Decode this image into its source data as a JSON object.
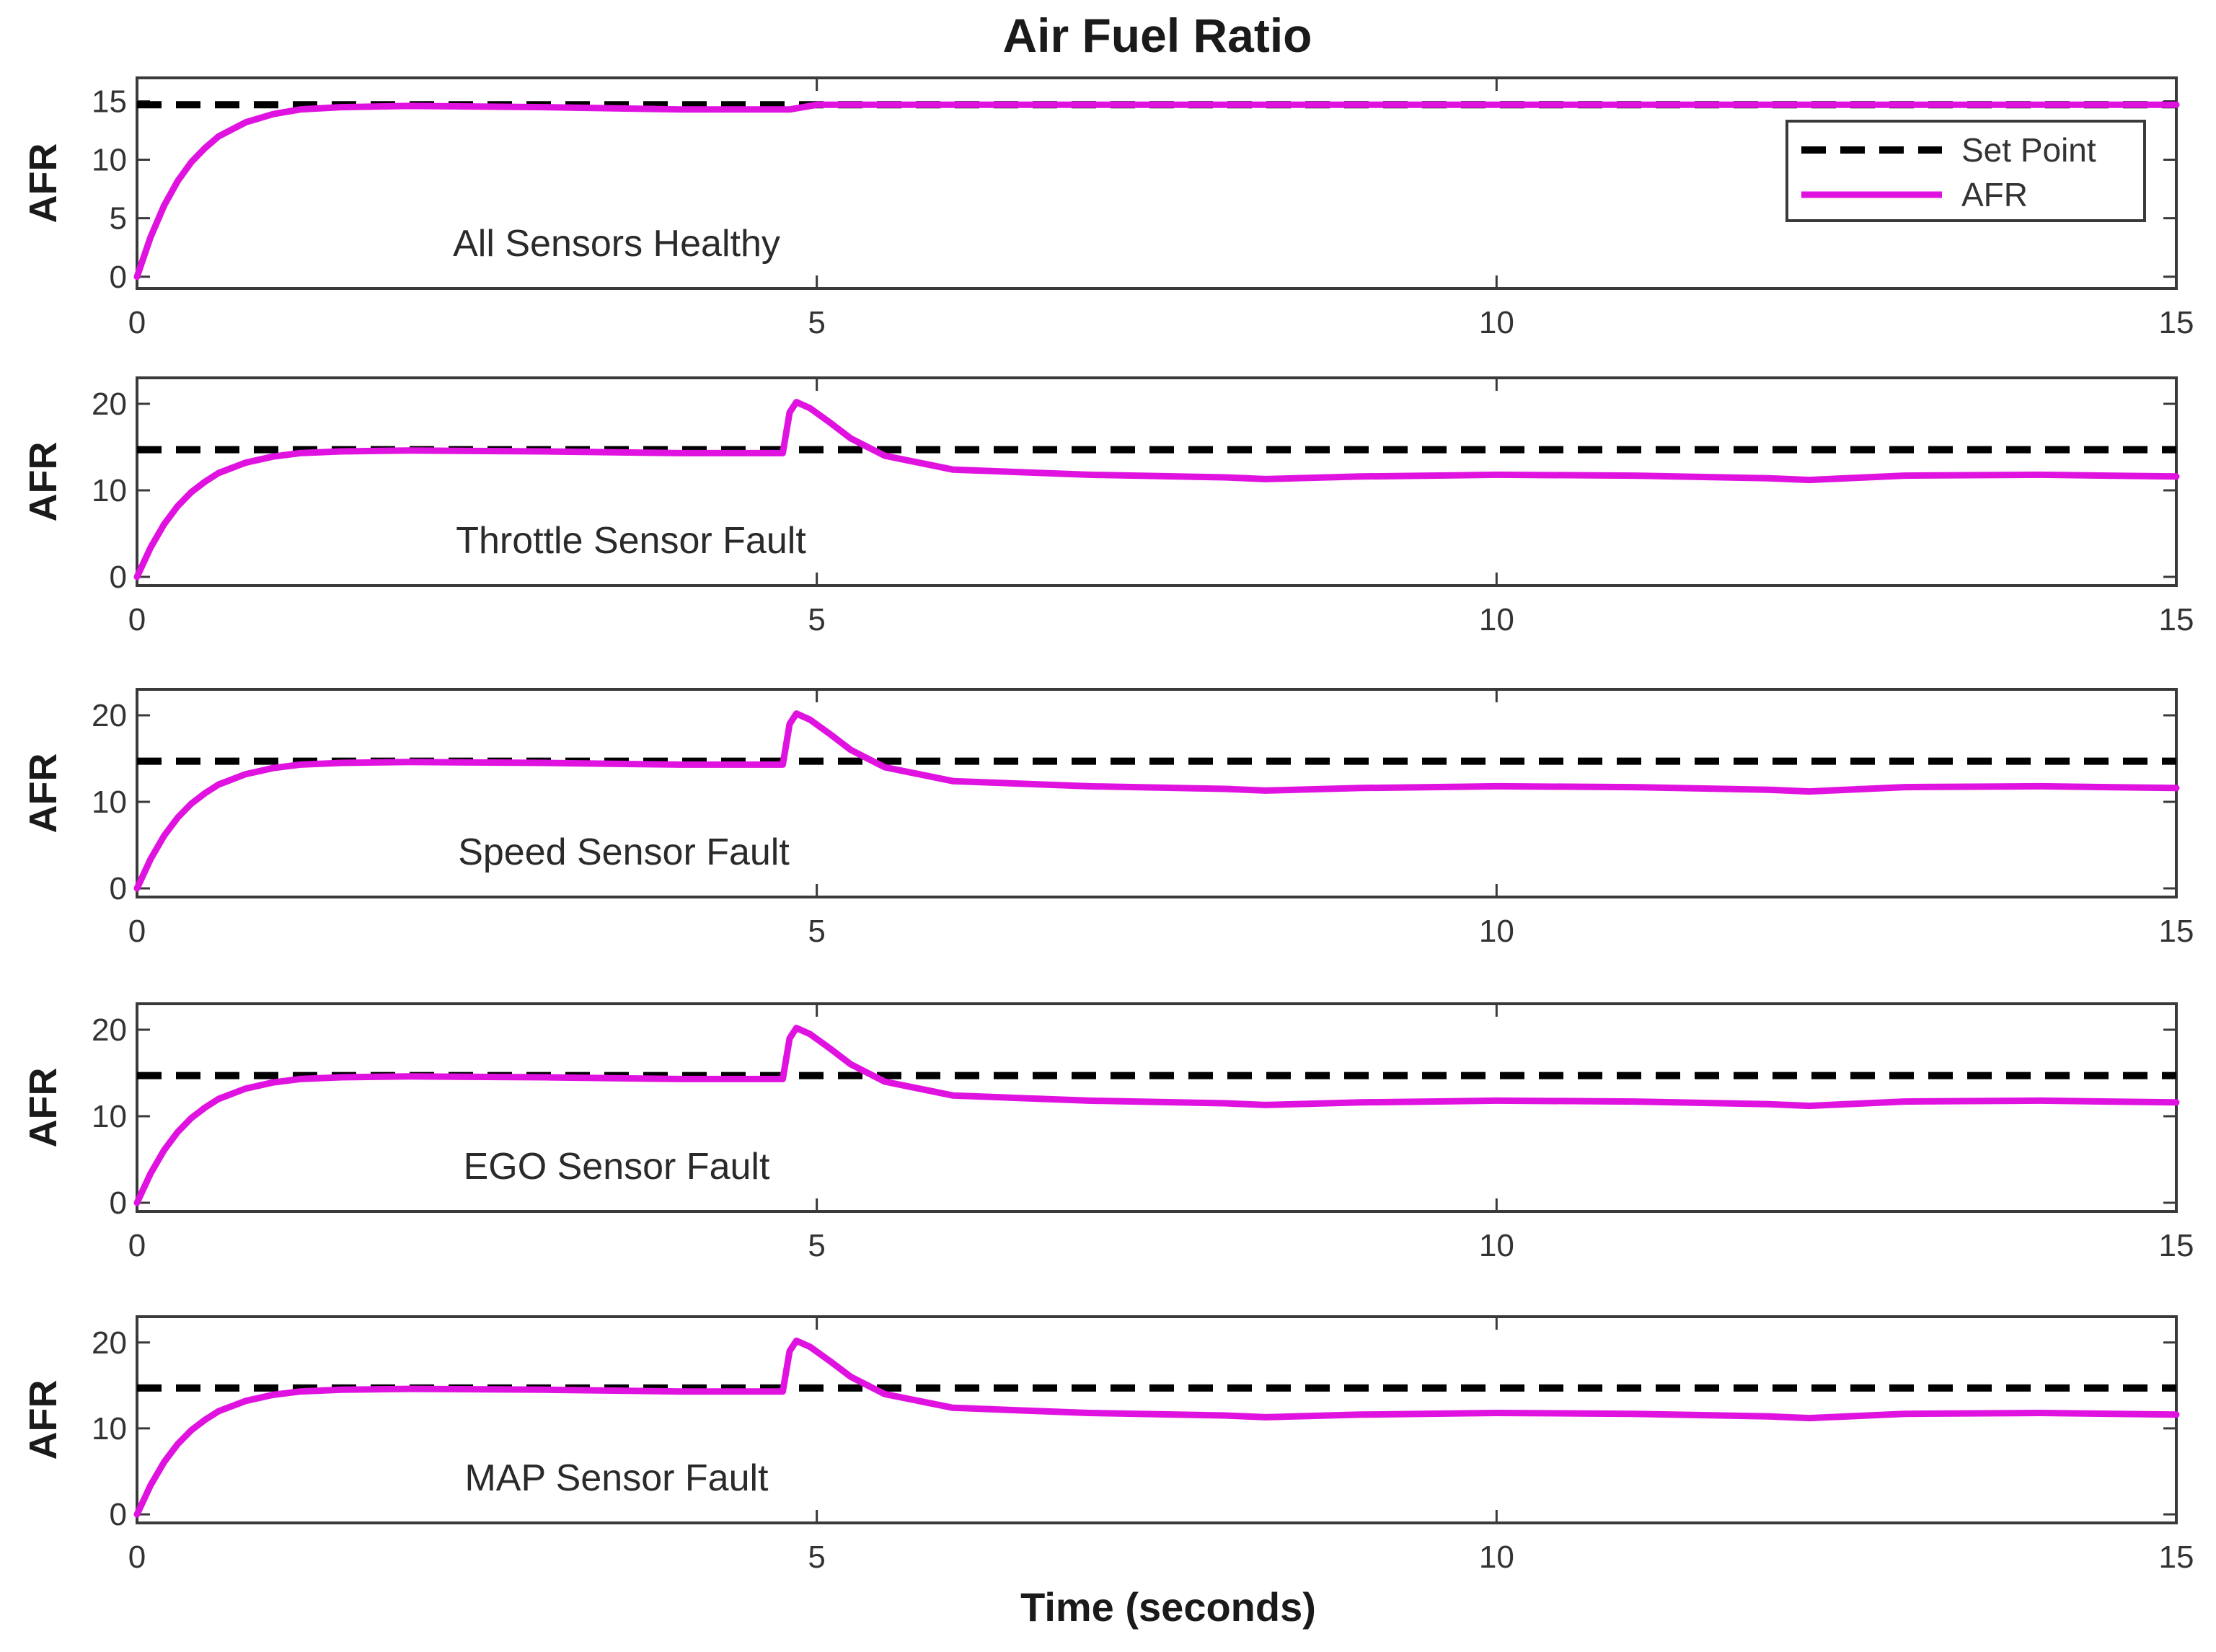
{
  "figure": {
    "title": "Air Fuel Ratio",
    "xlabel": "Time (seconds)"
  },
  "colors": {
    "afr": "#e012e0",
    "setpoint": "#000000"
  },
  "legend": {
    "placement": "top-right",
    "panel": 0,
    "entries": [
      {
        "label": "Set Point",
        "style": "dashed-black"
      },
      {
        "label": "AFR",
        "style": "solid-magenta"
      }
    ]
  },
  "chart_data": [
    {
      "type": "line",
      "title": "",
      "annotation": "All Sensors Healthy",
      "xlabel": "",
      "ylabel": "AFR",
      "xlim": [
        0,
        15
      ],
      "ylim": [
        -1,
        17
      ],
      "xticks": [
        0,
        5,
        10,
        15
      ],
      "yticks": [
        0,
        5,
        10,
        15
      ],
      "grid": false,
      "legend": true,
      "series": [
        {
          "name": "Set Point",
          "x": [
            0,
            15
          ],
          "y": [
            14.7,
            14.7
          ]
        },
        {
          "name": "AFR",
          "x": [
            0,
            0.1,
            0.2,
            0.3,
            0.4,
            0.5,
            0.6,
            0.8,
            1.0,
            1.2,
            1.5,
            2.0,
            3.0,
            4.0,
            4.8,
            5.0,
            5.5,
            7.0,
            10.0,
            12.0,
            15.0
          ],
          "y": [
            0,
            3.4,
            6.1,
            8.2,
            9.8,
            11.0,
            12.0,
            13.2,
            13.9,
            14.3,
            14.5,
            14.6,
            14.5,
            14.3,
            14.3,
            14.7,
            14.7,
            14.7,
            14.7,
            14.7,
            14.7
          ]
        }
      ]
    },
    {
      "type": "line",
      "title": "",
      "annotation": "Throttle Sensor Fault",
      "xlabel": "",
      "ylabel": "AFR",
      "xlim": [
        0,
        15
      ],
      "ylim": [
        -1,
        23
      ],
      "xticks": [
        0,
        5,
        10,
        15
      ],
      "yticks": [
        0,
        10,
        20
      ],
      "grid": false,
      "legend": false,
      "series": [
        {
          "name": "Set Point",
          "x": [
            0,
            15
          ],
          "y": [
            14.7,
            14.7
          ]
        },
        {
          "name": "AFR",
          "x": [
            0,
            0.1,
            0.2,
            0.3,
            0.4,
            0.5,
            0.6,
            0.8,
            1.0,
            1.2,
            1.5,
            2.0,
            3.0,
            4.0,
            4.75,
            4.8,
            4.85,
            4.95,
            5.1,
            5.25,
            5.5,
            6.0,
            7.0,
            8.0,
            8.3,
            9.0,
            10.0,
            11.0,
            12.0,
            12.3,
            13.0,
            14.0,
            15.0
          ],
          "y": [
            0,
            3.4,
            6.1,
            8.2,
            9.8,
            11.0,
            12.0,
            13.2,
            13.9,
            14.3,
            14.5,
            14.6,
            14.5,
            14.3,
            14.3,
            19.0,
            20.2,
            19.5,
            17.8,
            16.0,
            14.0,
            12.4,
            11.8,
            11.5,
            11.3,
            11.6,
            11.8,
            11.7,
            11.4,
            11.2,
            11.7,
            11.8,
            11.6
          ]
        }
      ]
    },
    {
      "type": "line",
      "title": "",
      "annotation": "Speed Sensor Fault",
      "xlabel": "",
      "ylabel": "AFR",
      "xlim": [
        0,
        15
      ],
      "ylim": [
        -1,
        23
      ],
      "xticks": [
        0,
        5,
        10,
        15
      ],
      "yticks": [
        0,
        10,
        20
      ],
      "grid": false,
      "legend": false,
      "series": [
        {
          "name": "Set Point",
          "x": [
            0,
            15
          ],
          "y": [
            14.7,
            14.7
          ]
        },
        {
          "name": "AFR",
          "x": [
            0,
            0.1,
            0.2,
            0.3,
            0.4,
            0.5,
            0.6,
            0.8,
            1.0,
            1.2,
            1.5,
            2.0,
            3.0,
            4.0,
            4.75,
            4.8,
            4.85,
            4.95,
            5.1,
            5.25,
            5.5,
            6.0,
            7.0,
            8.0,
            8.3,
            9.0,
            10.0,
            11.0,
            12.0,
            12.3,
            13.0,
            14.0,
            15.0
          ],
          "y": [
            0,
            3.4,
            6.1,
            8.2,
            9.8,
            11.0,
            12.0,
            13.2,
            13.9,
            14.3,
            14.5,
            14.6,
            14.5,
            14.3,
            14.3,
            19.0,
            20.2,
            19.5,
            17.8,
            16.0,
            14.0,
            12.4,
            11.8,
            11.5,
            11.3,
            11.6,
            11.8,
            11.7,
            11.4,
            11.2,
            11.7,
            11.8,
            11.6
          ]
        }
      ]
    },
    {
      "type": "line",
      "title": "",
      "annotation": "EGO Sensor Fault",
      "xlabel": "",
      "ylabel": "AFR",
      "xlim": [
        0,
        15
      ],
      "ylim": [
        -1,
        23
      ],
      "xticks": [
        0,
        5,
        10,
        15
      ],
      "yticks": [
        0,
        10,
        20
      ],
      "grid": false,
      "legend": false,
      "series": [
        {
          "name": "Set Point",
          "x": [
            0,
            15
          ],
          "y": [
            14.7,
            14.7
          ]
        },
        {
          "name": "AFR",
          "x": [
            0,
            0.1,
            0.2,
            0.3,
            0.4,
            0.5,
            0.6,
            0.8,
            1.0,
            1.2,
            1.5,
            2.0,
            3.0,
            4.0,
            4.75,
            4.8,
            4.85,
            4.95,
            5.1,
            5.25,
            5.5,
            6.0,
            7.0,
            8.0,
            8.3,
            9.0,
            10.0,
            11.0,
            12.0,
            12.3,
            13.0,
            14.0,
            15.0
          ],
          "y": [
            0,
            3.4,
            6.1,
            8.2,
            9.8,
            11.0,
            12.0,
            13.2,
            13.9,
            14.3,
            14.5,
            14.6,
            14.5,
            14.3,
            14.3,
            19.0,
            20.2,
            19.5,
            17.8,
            16.0,
            14.0,
            12.4,
            11.8,
            11.5,
            11.3,
            11.6,
            11.8,
            11.7,
            11.4,
            11.2,
            11.7,
            11.8,
            11.6
          ]
        }
      ]
    },
    {
      "type": "line",
      "title": "",
      "annotation": "MAP Sensor Fault",
      "xlabel": "Time (seconds)",
      "ylabel": "AFR",
      "xlim": [
        0,
        15
      ],
      "ylim": [
        -1,
        23
      ],
      "xticks": [
        0,
        5,
        10,
        15
      ],
      "yticks": [
        0,
        10,
        20
      ],
      "grid": false,
      "legend": false,
      "series": [
        {
          "name": "Set Point",
          "x": [
            0,
            15
          ],
          "y": [
            14.7,
            14.7
          ]
        },
        {
          "name": "AFR",
          "x": [
            0,
            0.1,
            0.2,
            0.3,
            0.4,
            0.5,
            0.6,
            0.8,
            1.0,
            1.2,
            1.5,
            2.0,
            3.0,
            4.0,
            4.75,
            4.8,
            4.85,
            4.95,
            5.1,
            5.25,
            5.5,
            6.0,
            7.0,
            8.0,
            8.3,
            9.0,
            10.0,
            11.0,
            12.0,
            12.3,
            13.0,
            14.0,
            15.0
          ],
          "y": [
            0,
            3.4,
            6.1,
            8.2,
            9.8,
            11.0,
            12.0,
            13.2,
            13.9,
            14.3,
            14.5,
            14.6,
            14.5,
            14.3,
            14.3,
            19.0,
            20.2,
            19.5,
            17.8,
            16.0,
            14.0,
            12.4,
            11.8,
            11.5,
            11.3,
            11.6,
            11.8,
            11.7,
            11.4,
            11.2,
            11.7,
            11.8,
            11.6
          ]
        }
      ]
    }
  ]
}
